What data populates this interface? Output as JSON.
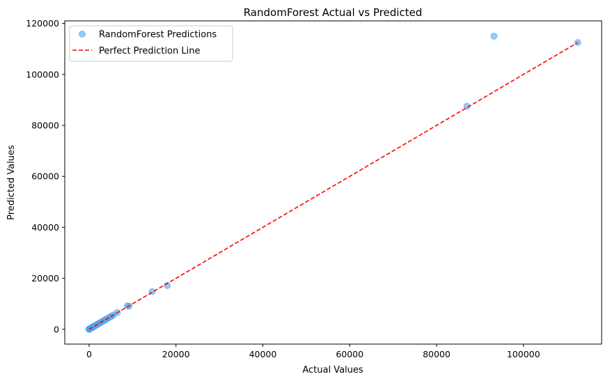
{
  "chart_data": {
    "type": "scatter",
    "title": "RandomForest Actual vs Predicted",
    "xlabel": "Actual Values",
    "ylabel": "Predicted Values",
    "xlim": [
      -5600,
      118000
    ],
    "ylim": [
      -5800,
      121000
    ],
    "xticks": [
      0,
      20000,
      40000,
      60000,
      80000,
      100000
    ],
    "yticks": [
      0,
      20000,
      40000,
      60000,
      80000,
      100000,
      120000
    ],
    "grid": false,
    "legend_position": "top-left",
    "series": [
      {
        "name": "RandomForest Predictions",
        "kind": "scatter",
        "color": "#4da6f0",
        "points": [
          [
            0,
            0
          ],
          [
            20,
            40
          ],
          [
            50,
            60
          ],
          [
            80,
            100
          ],
          [
            100,
            120
          ],
          [
            150,
            170
          ],
          [
            200,
            200
          ],
          [
            250,
            260
          ],
          [
            300,
            330
          ],
          [
            400,
            380
          ],
          [
            500,
            520
          ],
          [
            600,
            640
          ],
          [
            700,
            690
          ],
          [
            800,
            820
          ],
          [
            900,
            950
          ],
          [
            1000,
            1000
          ],
          [
            1100,
            1080
          ],
          [
            1200,
            1250
          ],
          [
            1300,
            1320
          ],
          [
            1500,
            1480
          ],
          [
            1700,
            1750
          ],
          [
            1900,
            1900
          ],
          [
            2100,
            2150
          ],
          [
            2300,
            2250
          ],
          [
            2500,
            2550
          ],
          [
            2800,
            2800
          ],
          [
            3100,
            3150
          ],
          [
            3400,
            3350
          ],
          [
            3700,
            3700
          ],
          [
            4000,
            4050
          ],
          [
            4400,
            4350
          ],
          [
            4800,
            4850
          ],
          [
            5200,
            5150
          ],
          [
            5600,
            5650
          ],
          [
            6500,
            6600
          ],
          [
            8800,
            9200
          ],
          [
            9200,
            9100
          ],
          [
            14500,
            14800
          ],
          [
            18000,
            17200
          ],
          [
            87000,
            87500
          ],
          [
            93200,
            115000
          ],
          [
            112500,
            112500
          ]
        ]
      },
      {
        "name": "Perfect Prediction Line",
        "kind": "line",
        "color": "#ff0000",
        "dash": "dashed",
        "points": [
          [
            0,
            0
          ],
          [
            112500,
            112500
          ]
        ]
      }
    ]
  }
}
